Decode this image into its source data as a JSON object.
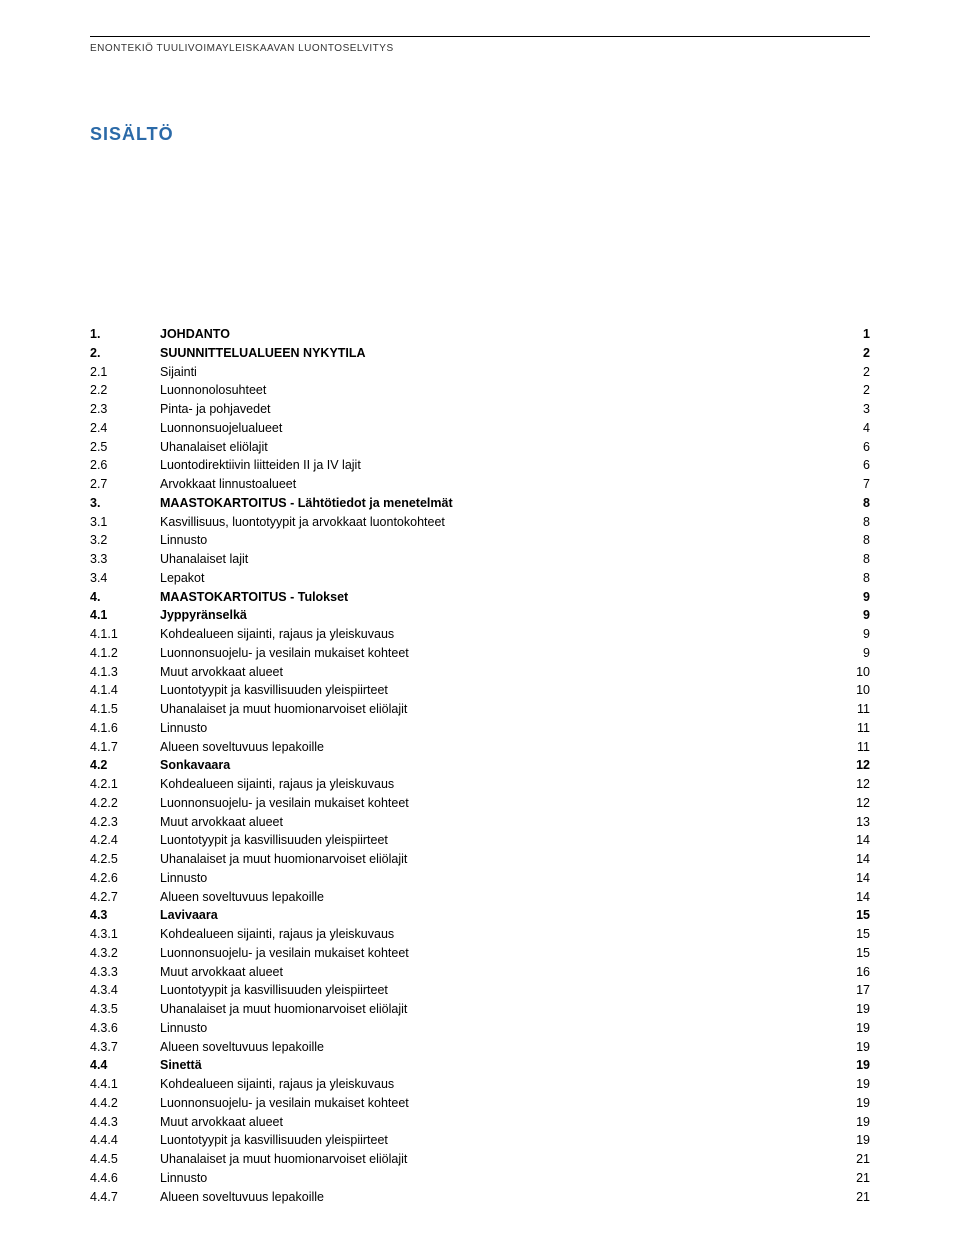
{
  "header": {
    "running_head": "ENONTEKIÖ TUULIVOIMAYLEISKAAVAN LUONTOSELVITYS"
  },
  "title": "SISÄLTÖ",
  "title_color": "#2b6aa8",
  "toc": [
    {
      "num": "1.",
      "label": "JOHDANTO",
      "page": "1",
      "bold": true
    },
    {
      "num": "2.",
      "label": "SUUNNITTELUALUEEN NYKYTILA",
      "page": "2",
      "bold": true
    },
    {
      "num": "2.1",
      "label": "Sijainti",
      "page": "2",
      "bold": false
    },
    {
      "num": "2.2",
      "label": "Luonnonolosuhteet",
      "page": "2",
      "bold": false
    },
    {
      "num": "2.3",
      "label": "Pinta- ja pohjavedet",
      "page": "3",
      "bold": false
    },
    {
      "num": "2.4",
      "label": "Luonnonsuojelualueet",
      "page": "4",
      "bold": false
    },
    {
      "num": "2.5",
      "label": "Uhanalaiset eliölajit",
      "page": "6",
      "bold": false
    },
    {
      "num": "2.6",
      "label": "Luontodirektiivin liitteiden II ja IV lajit",
      "page": "6",
      "bold": false
    },
    {
      "num": "2.7",
      "label": "Arvokkaat linnustoalueet",
      "page": "7",
      "bold": false
    },
    {
      "num": "3.",
      "label": "MAASTOKARTOITUS - Lähtötiedot ja menetelmät",
      "page": "8",
      "bold": true
    },
    {
      "num": "3.1",
      "label": "Kasvillisuus, luontotyypit ja arvokkaat luontokohteet",
      "page": "8",
      "bold": false
    },
    {
      "num": "3.2",
      "label": "Linnusto",
      "page": "8",
      "bold": false
    },
    {
      "num": "3.3",
      "label": "Uhanalaiset lajit",
      "page": "8",
      "bold": false
    },
    {
      "num": "3.4",
      "label": "Lepakot",
      "page": "8",
      "bold": false
    },
    {
      "num": "4.",
      "label": "MAASTOKARTOITUS - Tulokset",
      "page": "9",
      "bold": true
    },
    {
      "num": "4.1",
      "label": "Jyppyränselkä",
      "page": "9",
      "bold": true
    },
    {
      "num": "4.1.1",
      "label": "Kohdealueen sijainti, rajaus ja yleiskuvaus",
      "page": "9",
      "bold": false
    },
    {
      "num": "4.1.2",
      "label": "Luonnonsuojelu- ja vesilain mukaiset kohteet",
      "page": "9",
      "bold": false
    },
    {
      "num": "4.1.3",
      "label": "Muut arvokkaat alueet",
      "page": "10",
      "bold": false
    },
    {
      "num": "4.1.4",
      "label": "Luontotyypit ja kasvillisuuden yleispiirteet",
      "page": "10",
      "bold": false
    },
    {
      "num": "4.1.5",
      "label": "Uhanalaiset ja muut huomionarvoiset eliölajit",
      "page": "11",
      "bold": false
    },
    {
      "num": "4.1.6",
      "label": "Linnusto",
      "page": "11",
      "bold": false
    },
    {
      "num": "4.1.7",
      "label": "Alueen soveltuvuus lepakoille",
      "page": "11",
      "bold": false
    },
    {
      "num": "4.2",
      "label": "Sonkavaara",
      "page": "12",
      "bold": true
    },
    {
      "num": "4.2.1",
      "label": "Kohdealueen sijainti, rajaus ja yleiskuvaus",
      "page": "12",
      "bold": false
    },
    {
      "num": "4.2.2",
      "label": "Luonnonsuojelu- ja vesilain mukaiset kohteet",
      "page": "12",
      "bold": false
    },
    {
      "num": "4.2.3",
      "label": "Muut arvokkaat alueet",
      "page": "13",
      "bold": false
    },
    {
      "num": "4.2.4",
      "label": "Luontotyypit ja kasvillisuuden yleispiirteet",
      "page": "14",
      "bold": false
    },
    {
      "num": "4.2.5",
      "label": "Uhanalaiset ja muut huomionarvoiset eliölajit",
      "page": "14",
      "bold": false
    },
    {
      "num": "4.2.6",
      "label": "Linnusto",
      "page": "14",
      "bold": false
    },
    {
      "num": "4.2.7",
      "label": "Alueen soveltuvuus lepakoille",
      "page": "14",
      "bold": false
    },
    {
      "num": "4.3",
      "label": "Lavivaara",
      "page": "15",
      "bold": true
    },
    {
      "num": "4.3.1",
      "label": "Kohdealueen sijainti, rajaus ja yleiskuvaus",
      "page": "15",
      "bold": false
    },
    {
      "num": "4.3.2",
      "label": "Luonnonsuojelu- ja vesilain mukaiset kohteet",
      "page": "15",
      "bold": false
    },
    {
      "num": "4.3.3",
      "label": "Muut arvokkaat alueet",
      "page": "16",
      "bold": false
    },
    {
      "num": "4.3.4",
      "label": "Luontotyypit ja kasvillisuuden yleispiirteet",
      "page": "17",
      "bold": false
    },
    {
      "num": "4.3.5",
      "label": "Uhanalaiset ja muut huomionarvoiset eliölajit",
      "page": "19",
      "bold": false
    },
    {
      "num": "4.3.6",
      "label": "Linnusto",
      "page": "19",
      "bold": false
    },
    {
      "num": "4.3.7",
      "label": "Alueen soveltuvuus lepakoille",
      "page": "19",
      "bold": false
    },
    {
      "num": "4.4",
      "label": "Sinettä",
      "page": "19",
      "bold": true
    },
    {
      "num": "4.4.1",
      "label": "Kohdealueen sijainti, rajaus ja yleiskuvaus",
      "page": "19",
      "bold": false
    },
    {
      "num": "4.4.2",
      "label": "Luonnonsuojelu- ja vesilain mukaiset kohteet",
      "page": "19",
      "bold": false
    },
    {
      "num": "4.4.3",
      "label": "Muut arvokkaat alueet",
      "page": "19",
      "bold": false
    },
    {
      "num": "4.4.4",
      "label": "Luontotyypit ja kasvillisuuden yleispiirteet",
      "page": "19",
      "bold": false
    },
    {
      "num": "4.4.5",
      "label": "Uhanalaiset ja muut huomionarvoiset eliölajit",
      "page": "21",
      "bold": false
    },
    {
      "num": "4.4.6",
      "label": "Linnusto",
      "page": "21",
      "bold": false
    },
    {
      "num": "4.4.7",
      "label": "Alueen soveltuvuus lepakoille",
      "page": "21",
      "bold": false
    }
  ]
}
